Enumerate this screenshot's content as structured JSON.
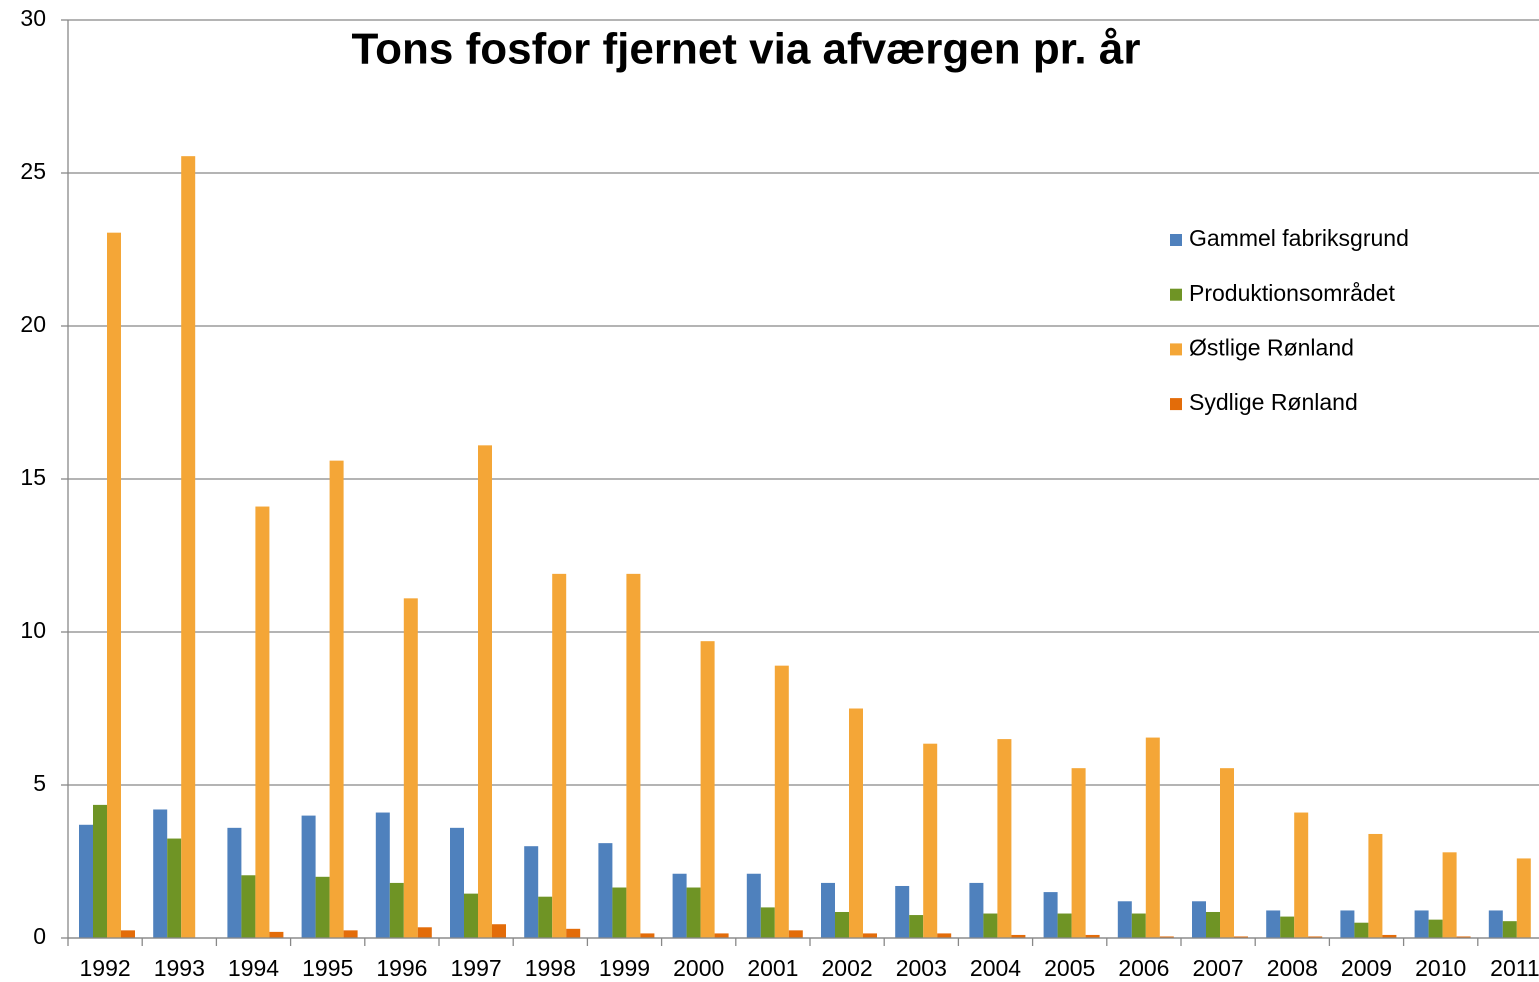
{
  "chart_data": {
    "type": "bar",
    "title": "Tons fosfor fjernet via afværgen pr. år",
    "categories": [
      "1992",
      "1993",
      "1994",
      "1995",
      "1996",
      "1997",
      "1998",
      "1999",
      "2000",
      "2001",
      "2002",
      "2003",
      "2004",
      "2005",
      "2006",
      "2007",
      "2008",
      "2009",
      "2010",
      "2011"
    ],
    "series": [
      {
        "name": "Gammel fabriksgrund",
        "color": "#4f81bd",
        "values": [
          3.7,
          4.2,
          3.6,
          4.0,
          4.1,
          3.6,
          3.0,
          3.1,
          2.1,
          2.1,
          1.8,
          1.7,
          1.8,
          1.5,
          1.2,
          1.2,
          0.9,
          0.9,
          0.9,
          0.9
        ]
      },
      {
        "name": "Produktionsområdet",
        "color": "#6f9425",
        "values": [
          4.35,
          3.25,
          2.05,
          2.0,
          1.8,
          1.45,
          1.35,
          1.65,
          1.65,
          1.0,
          0.85,
          0.75,
          0.8,
          0.8,
          0.8,
          0.85,
          0.7,
          0.5,
          0.6,
          0.55
        ]
      },
      {
        "name": "Østlige Rønland",
        "color": "#f4a637",
        "values": [
          23.05,
          25.55,
          14.1,
          15.6,
          11.1,
          16.1,
          11.9,
          11.9,
          9.7,
          8.9,
          7.5,
          6.35,
          6.5,
          5.55,
          6.55,
          5.55,
          4.1,
          3.4,
          2.8,
          2.6
        ]
      },
      {
        "name": "Sydlige Rønland",
        "color": "#e36c09",
        "values": [
          0.25,
          0,
          0.2,
          0.25,
          0.35,
          0.45,
          0.3,
          0.15,
          0.15,
          0.25,
          0.15,
          0.15,
          0.1,
          0.1,
          0.05,
          0.05,
          0.05,
          0.1,
          0.05,
          0
        ]
      }
    ],
    "ylim": [
      0,
      30
    ],
    "yticks": [
      0,
      5,
      10,
      15,
      20,
      25,
      30
    ],
    "grid": true,
    "legend": "right"
  }
}
